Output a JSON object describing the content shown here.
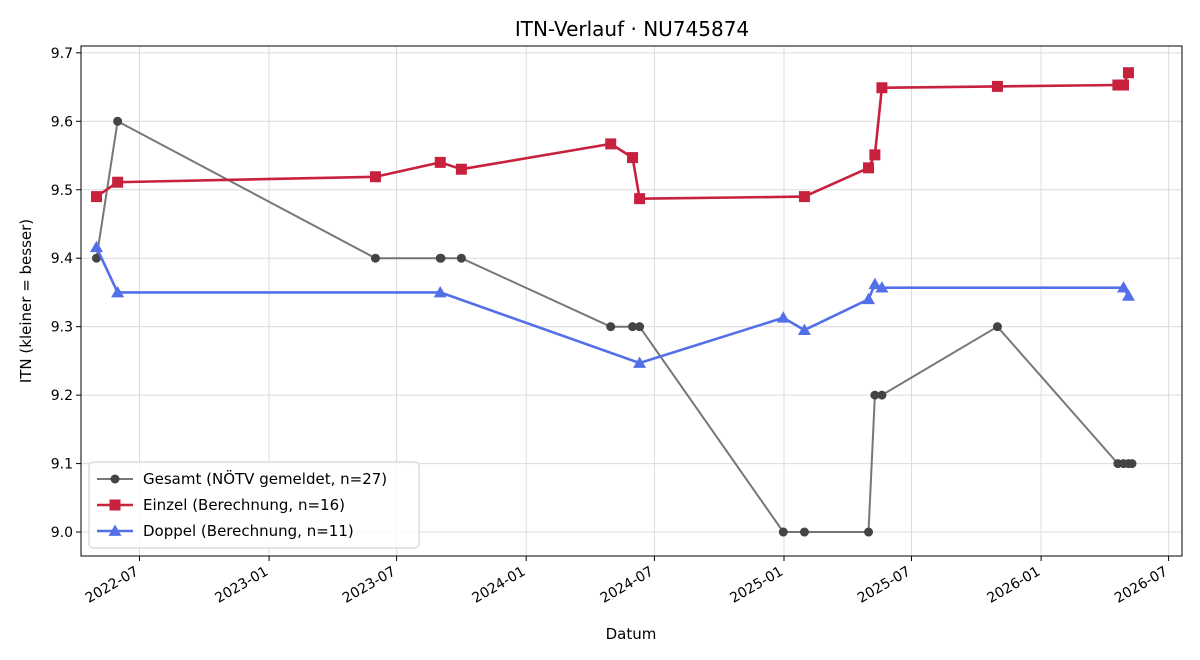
{
  "chart_data": {
    "type": "line",
    "title": "ITN-Verlauf · NU745874",
    "xlabel": "Datum",
    "ylabel": "ITN  (kleiner = besser)",
    "ylim": [
      8.965,
      9.71
    ],
    "xlim": [
      "2022-04-09",
      "2026-07-20"
    ],
    "yticks": [
      "9.0",
      "9.1",
      "9.2",
      "9.3",
      "9.4",
      "9.5",
      "9.6",
      "9.7"
    ],
    "xticks": [
      "2022-07",
      "2023-01",
      "2023-07",
      "2024-01",
      "2024-07",
      "2025-01",
      "2025-07",
      "2026-01",
      "2026-07"
    ],
    "grid": true,
    "legend_position": "lower-left",
    "series": [
      {
        "name": "Gesamt (NÖTV gemeldet, n=27)",
        "color": "#555555",
        "marker": "circle",
        "x": [
          "2022-05-01",
          "2022-05-31",
          "2023-06-01",
          "2023-09-01",
          "2023-09-02",
          "2023-10-01",
          "2024-04-30",
          "2024-05-31",
          "2024-06-10",
          "2024-12-31",
          "2025-01-30",
          "2025-05-01",
          "2025-05-10",
          "2025-05-20",
          "2025-10-31",
          "2026-04-20",
          "2026-04-28",
          "2026-05-05",
          "2026-05-10"
        ],
        "y": [
          9.4,
          9.6,
          9.4,
          9.4,
          9.4,
          9.4,
          9.3,
          9.3,
          9.3,
          9.0,
          9.0,
          9.0,
          9.2,
          9.2,
          9.3,
          9.1,
          9.1,
          9.1,
          9.1
        ]
      },
      {
        "name": "Einzel (Berechnung, n=16)",
        "color": "#c8213e",
        "marker": "square",
        "x": [
          "2022-05-01",
          "2022-05-31",
          "2023-06-01",
          "2023-09-01",
          "2023-10-01",
          "2024-04-30",
          "2024-05-31",
          "2024-06-10",
          "2025-01-30",
          "2025-05-01",
          "2025-05-10",
          "2025-05-20",
          "2025-10-31",
          "2026-04-20",
          "2026-04-28",
          "2026-05-05"
        ],
        "y": [
          9.49,
          9.511,
          9.519,
          9.54,
          9.53,
          9.567,
          9.547,
          9.487,
          9.49,
          9.532,
          9.551,
          9.649,
          9.651,
          9.653,
          9.653,
          9.671
        ]
      },
      {
        "name": "Doppel (Berechnung, n=11)",
        "color": "#5470e8",
        "marker": "triangle",
        "x": [
          "2022-05-01",
          "2022-05-31",
          "2023-09-01",
          "2024-06-10",
          "2024-12-31",
          "2025-01-30",
          "2025-05-01",
          "2025-05-10",
          "2025-05-20",
          "2026-04-28",
          "2026-05-05"
        ],
        "y": [
          9.416,
          9.35,
          9.35,
          9.247,
          9.313,
          9.295,
          9.34,
          9.362,
          9.357,
          9.357,
          9.345
        ]
      }
    ]
  }
}
